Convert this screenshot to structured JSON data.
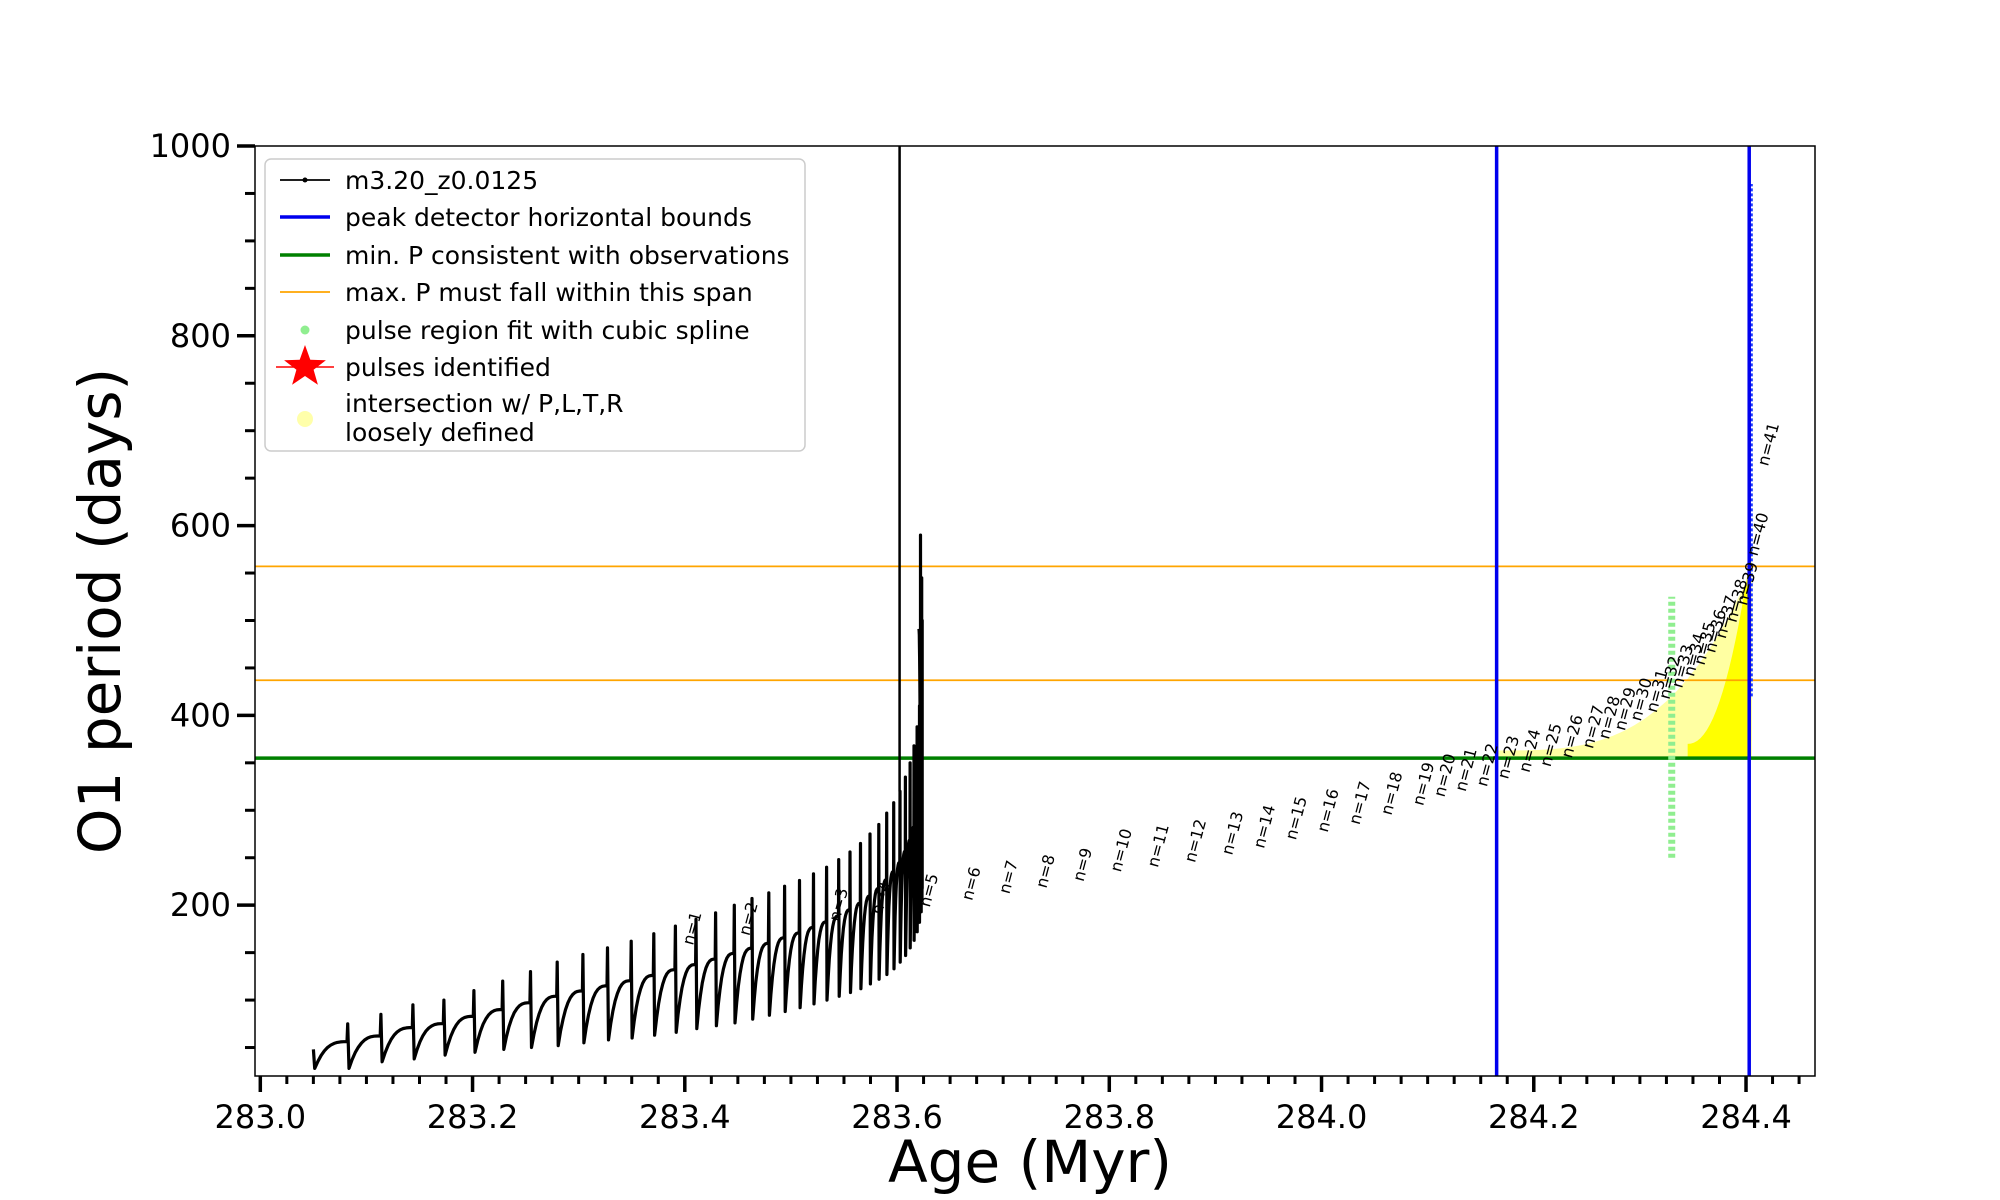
{
  "chart_data": {
    "type": "line",
    "title": "",
    "xlabel": "Age (Myr)",
    "ylabel": "O1 period (days)",
    "xlim": [
      282.995,
      284.465
    ],
    "ylim": [
      20,
      1000
    ],
    "xticks": [
      283.0,
      283.2,
      283.4,
      283.6,
      283.8,
      284.0,
      284.2,
      284.4
    ],
    "xtick_labels": [
      "283.0",
      "283.2",
      "283.4",
      "283.6",
      "283.8",
      "284.0",
      "284.2",
      "284.4"
    ],
    "yticks": [
      200,
      400,
      600,
      800,
      1000
    ],
    "ytick_labels": [
      "200",
      "400",
      "600",
      "800",
      "1000"
    ],
    "grid": false,
    "legend_position": "top-left",
    "series_name": "m3.20_z0.0125",
    "pulse_start_age": 283.05,
    "pulse_age_step": 0.03285,
    "pulse_count": 41,
    "pulses": [
      {
        "peak": 48,
        "trough": 28
      },
      {
        "peak": 75,
        "trough": 28
      },
      {
        "peak": 85,
        "trough": 35
      },
      {
        "peak": 95,
        "trough": 38
      },
      {
        "peak": 100,
        "trough": 42
      },
      {
        "peak": 110,
        "trough": 45
      },
      {
        "peak": 120,
        "trough": 48
      },
      {
        "peak": 130,
        "trough": 50
      },
      {
        "peak": 140,
        "trough": 52
      },
      {
        "peak": 148,
        "trough": 55
      },
      {
        "peak": 155,
        "trough": 58
      },
      {
        "peak": 162,
        "trough": 60
      },
      {
        "peak": 170,
        "trough": 63
      },
      {
        "peak": 178,
        "trough": 66
      },
      {
        "peak": 185,
        "trough": 70
      },
      {
        "peak": 192,
        "trough": 73
      },
      {
        "peak": 200,
        "trough": 76
      },
      {
        "peak": 207,
        "trough": 80
      },
      {
        "peak": 213,
        "trough": 84
      },
      {
        "peak": 220,
        "trough": 88
      },
      {
        "peak": 226,
        "trough": 92
      },
      {
        "peak": 233,
        "trough": 96
      },
      {
        "peak": 240,
        "trough": 100
      },
      {
        "peak": 248,
        "trough": 104
      },
      {
        "peak": 256,
        "trough": 108
      },
      {
        "peak": 265,
        "trough": 112
      },
      {
        "peak": 275,
        "trough": 117
      },
      {
        "peak": 285,
        "trough": 122
      },
      {
        "peak": 297,
        "trough": 127
      },
      {
        "peak": 308,
        "trough": 133
      },
      {
        "peak": 320,
        "trough": 140
      },
      {
        "peak": 335,
        "trough": 147
      },
      {
        "peak": 350,
        "trough": 155
      },
      {
        "peak": 368,
        "trough": 163
      },
      {
        "peak": 388,
        "trough": 172
      },
      {
        "peak": 410,
        "trough": 182
      },
      {
        "peak": 435,
        "trough": 193
      },
      {
        "peak": 465,
        "trough": 205
      },
      {
        "peak": 500,
        "trough": 218
      },
      {
        "peak": 545,
        "trough": 235
      },
      {
        "peak": 590,
        "trough": 255
      }
    ],
    "tail_spike_top": 1000,
    "blue_spike": {
      "x": 284.405,
      "y_low": 420,
      "y_high": 960
    },
    "pulse_labels": [
      {
        "n": "n=1",
        "x": 283.402,
        "y": 155
      },
      {
        "n": "n=2",
        "x": 283.455,
        "y": 165
      },
      {
        "n": "n=3",
        "x": 283.54,
        "y": 180
      },
      {
        "n": "n=4",
        "x": 283.58,
        "y": 187
      },
      {
        "n": "n=5",
        "x": 283.625,
        "y": 195
      },
      {
        "n": "n=6",
        "x": 283.665,
        "y": 202
      },
      {
        "n": "n=7",
        "x": 283.7,
        "y": 209
      },
      {
        "n": "n=8",
        "x": 283.735,
        "y": 215
      },
      {
        "n": "n=9",
        "x": 283.77,
        "y": 222
      },
      {
        "n": "n=10",
        "x": 283.805,
        "y": 232
      },
      {
        "n": "n=11",
        "x": 283.84,
        "y": 237
      },
      {
        "n": "n=12",
        "x": 283.875,
        "y": 242
      },
      {
        "n": "n=13",
        "x": 283.91,
        "y": 250
      },
      {
        "n": "n=14",
        "x": 283.94,
        "y": 257
      },
      {
        "n": "n=15",
        "x": 283.97,
        "y": 266
      },
      {
        "n": "n=16",
        "x": 284.0,
        "y": 274
      },
      {
        "n": "n=17",
        "x": 284.03,
        "y": 282
      },
      {
        "n": "n=18",
        "x": 284.06,
        "y": 292
      },
      {
        "n": "n=19",
        "x": 284.09,
        "y": 302
      },
      {
        "n": "n=20",
        "x": 284.11,
        "y": 311
      },
      {
        "n": "n=21",
        "x": 284.13,
        "y": 317
      },
      {
        "n": "n=22",
        "x": 284.15,
        "y": 322
      },
      {
        "n": "n=23",
        "x": 284.17,
        "y": 330
      },
      {
        "n": "n=24",
        "x": 284.19,
        "y": 337
      },
      {
        "n": "n=25",
        "x": 284.21,
        "y": 343
      },
      {
        "n": "n=26",
        "x": 284.23,
        "y": 352
      },
      {
        "n": "n=27",
        "x": 284.25,
        "y": 362
      },
      {
        "n": "n=28",
        "x": 284.265,
        "y": 372
      },
      {
        "n": "n=29",
        "x": 284.28,
        "y": 381
      },
      {
        "n": "n=30",
        "x": 284.295,
        "y": 391
      },
      {
        "n": "n=31",
        "x": 284.31,
        "y": 400
      },
      {
        "n": "n=32",
        "x": 284.322,
        "y": 414
      },
      {
        "n": "n=33",
        "x": 284.334,
        "y": 426
      },
      {
        "n": "n=34",
        "x": 284.345,
        "y": 438
      },
      {
        "n": "n=35",
        "x": 284.355,
        "y": 450
      },
      {
        "n": "n=36",
        "x": 284.365,
        "y": 463
      },
      {
        "n": "n=37",
        "x": 284.375,
        "y": 478
      },
      {
        "n": "n=38",
        "x": 284.385,
        "y": 495
      },
      {
        "n": "n=39",
        "x": 284.395,
        "y": 513
      },
      {
        "n": "n=40",
        "x": 284.405,
        "y": 565
      },
      {
        "n": "n=41",
        "x": 284.415,
        "y": 660
      }
    ],
    "vertical_lines": [
      {
        "x": 284.165,
        "color": "#0000ee"
      },
      {
        "x": 284.403,
        "color": "#0000ee"
      }
    ],
    "horizontal_lines": [
      {
        "y": 355,
        "color": "#008000",
        "kind": "min_p"
      },
      {
        "y": 437,
        "color": "#ffa500",
        "kind": "max_p"
      },
      {
        "y": 557,
        "color": "#ffa500",
        "kind": "max_p"
      }
    ],
    "green_region": {
      "x": 284.33,
      "y_low": 250,
      "y_high": 525
    },
    "yellow_region": {
      "x_start": 284.165,
      "x_end": 284.405
    },
    "legend": [
      {
        "label": "m3.20_z0.0125",
        "kind": "line-dot",
        "color": "#000000"
      },
      {
        "label": "peak detector horizontal bounds",
        "kind": "line",
        "color": "#0000ee"
      },
      {
        "label": "min. P consistent with observations",
        "kind": "line",
        "color": "#008000"
      },
      {
        "label": "max. P must fall within this span",
        "kind": "thin-line",
        "color": "#ffa500"
      },
      {
        "label": "pulse region fit with cubic spline",
        "kind": "dot",
        "color": "#90ee90"
      },
      {
        "label": "pulses identified",
        "kind": "star",
        "color": "#ff0000"
      },
      {
        "label": "intersection w/ P,L,T,R",
        "label2": "loosely defined",
        "kind": "big-dot",
        "color": "#ffffaa"
      }
    ]
  }
}
